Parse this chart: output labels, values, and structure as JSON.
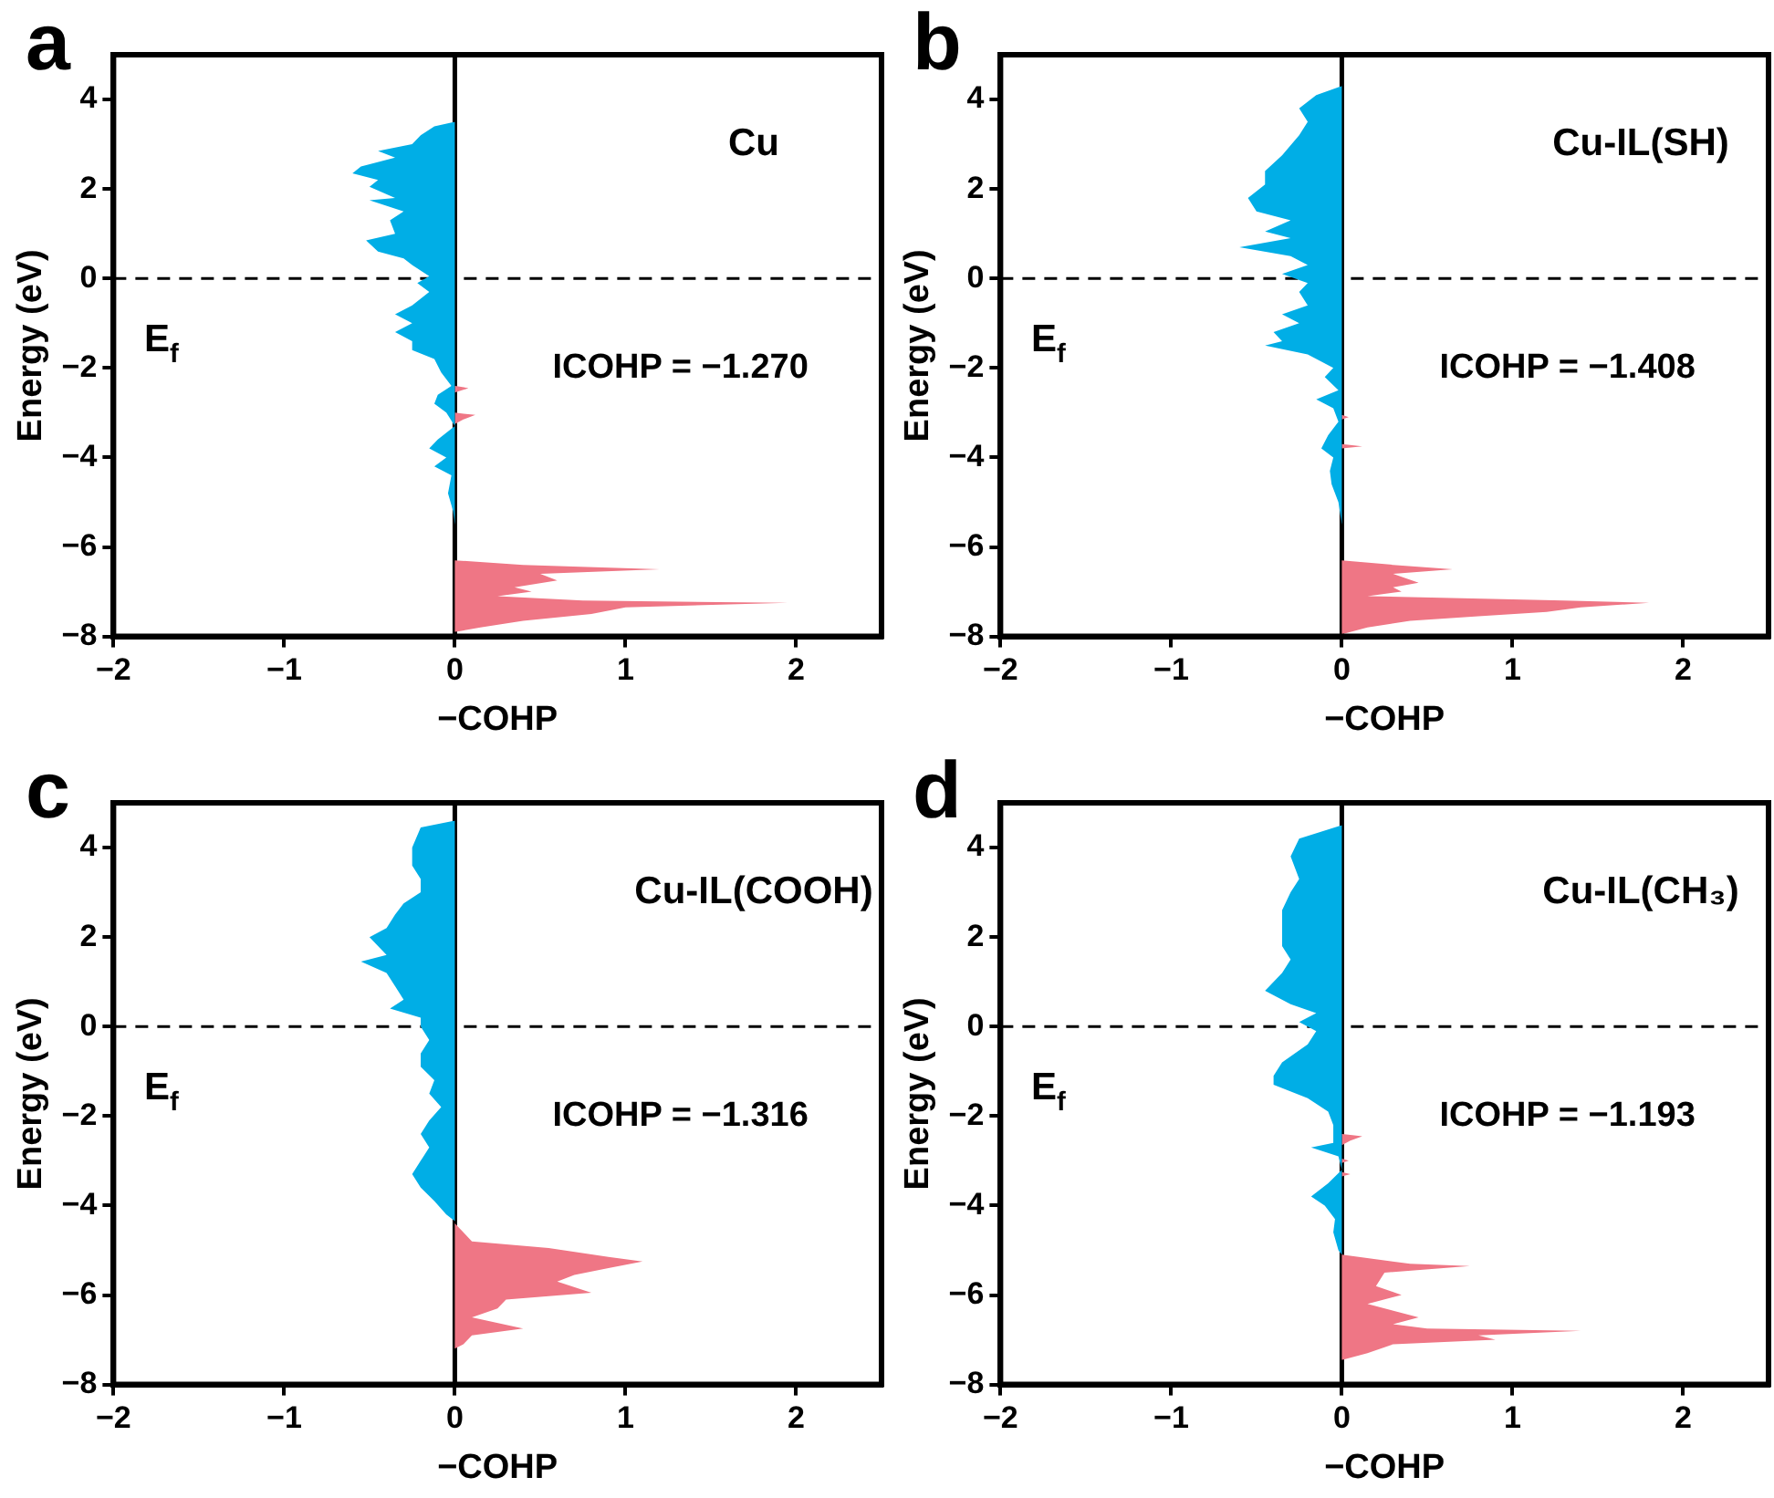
{
  "chart_data": [
    {
      "type": "area",
      "orientation": "horizontal",
      "title": "Cu",
      "xlabel": "−COHP",
      "ylabel": "Energy (eV)",
      "xlim": [
        -2,
        2.5
      ],
      "xticks": [
        -2,
        -1,
        0,
        1,
        2
      ],
      "ylim": [
        -8,
        5
      ],
      "yticks": [
        -8,
        -6,
        -4,
        -2,
        0,
        2,
        4
      ],
      "grid": false,
      "legend": false,
      "marker": "none",
      "annotations": [
        "a",
        "E$_{f}$",
        "ICOHP = −1.270"
      ],
      "ref_lines": [
        {
          "axis": "y",
          "value": 0,
          "color": "#000000",
          "line_style": "dashed"
        },
        {
          "axis": "x",
          "value": 0,
          "color": "#000000",
          "line_style": "solid"
        }
      ],
      "series": [
        {
          "color": "#00aee6",
          "x": [
            3.5,
            3.4,
            3.2,
            3.0,
            2.85,
            2.7,
            2.5,
            2.35,
            2.2,
            2.05,
            1.8,
            1.75,
            1.5,
            1.3,
            1.0,
            0.85,
            0.6,
            0.45,
            0.3,
            0.05,
            -0.1,
            -0.3,
            -0.6,
            -0.8,
            -1.0,
            -1.2,
            -1.4,
            -1.6,
            -1.8,
            -2.1,
            -2.4,
            -2.6,
            -2.8,
            -3.0,
            -3.3,
            -3.6,
            -3.8,
            -4.0,
            -4.2,
            -4.4,
            -4.8,
            -5.2,
            -5.5
          ],
          "values": [
            0,
            -0.12,
            -0.2,
            -0.25,
            -0.45,
            -0.35,
            -0.55,
            -0.6,
            -0.45,
            -0.5,
            -0.35,
            -0.5,
            -0.3,
            -0.38,
            -0.35,
            -0.52,
            -0.45,
            -0.3,
            -0.25,
            -0.15,
            -0.22,
            -0.15,
            -0.25,
            -0.35,
            -0.25,
            -0.35,
            -0.25,
            -0.25,
            -0.12,
            -0.08,
            -0.02,
            -0.1,
            -0.12,
            -0.05,
            0,
            -0.1,
            -0.15,
            -0.05,
            -0.12,
            -0.02,
            -0.04,
            -0.01,
            0
          ]
        },
        {
          "color": "#ef7685",
          "x": [
            -2.4,
            -2.45,
            -2.55,
            -3.0,
            -3.05,
            -3.15,
            -3.25,
            -6.3,
            -6.4,
            -6.5,
            -6.6,
            -6.75,
            -6.9,
            -7.0,
            -7.1,
            -7.2,
            -7.25,
            -7.35,
            -7.5,
            -7.65,
            -7.8,
            -7.9
          ],
          "values": [
            0,
            0.08,
            0,
            0,
            0.12,
            0.05,
            0,
            0,
            0.4,
            1.2,
            0.5,
            0.6,
            0.35,
            0.45,
            0.25,
            0.75,
            1.95,
            1.0,
            0.8,
            0.4,
            0.15,
            0
          ]
        }
      ]
    },
    {
      "type": "area",
      "orientation": "horizontal",
      "title": "Cu-IL(SH)",
      "xlabel": "−COHP",
      "ylabel": "Energy (eV)",
      "xlim": [
        -2,
        2.5
      ],
      "xticks": [
        -2,
        -1,
        0,
        1,
        2
      ],
      "ylim": [
        -8,
        5
      ],
      "yticks": [
        -8,
        -6,
        -4,
        -2,
        0,
        2,
        4
      ],
      "grid": false,
      "legend": false,
      "marker": "none",
      "annotations": [
        "b",
        "E$_{f}$",
        "ICOHP = −1.408"
      ],
      "ref_lines": [
        {
          "axis": "y",
          "value": 0,
          "color": "#000000",
          "line_style": "dashed"
        },
        {
          "axis": "x",
          "value": 0,
          "color": "#000000",
          "line_style": "solid"
        }
      ],
      "series": [
        {
          "color": "#00aee6",
          "x": [
            4.3,
            4.1,
            3.8,
            3.5,
            3.2,
            2.75,
            2.4,
            2.1,
            1.8,
            1.5,
            1.3,
            1.05,
            0.9,
            0.7,
            0.5,
            0.3,
            0.1,
            -0.1,
            -0.3,
            -0.6,
            -0.8,
            -1.0,
            -1.2,
            -1.4,
            -1.5,
            -1.7,
            -2.0,
            -2.2,
            -2.5,
            -2.7,
            -2.9,
            -3.2,
            -3.5,
            -3.8,
            -4.0,
            -4.3,
            -4.6,
            -5.0,
            -5.5
          ],
          "values": [
            0,
            -0.15,
            -0.25,
            -0.2,
            -0.25,
            -0.35,
            -0.45,
            -0.45,
            -0.55,
            -0.5,
            -0.3,
            -0.45,
            -0.3,
            -0.6,
            -0.3,
            -0.2,
            -0.35,
            -0.2,
            -0.25,
            -0.2,
            -0.35,
            -0.25,
            -0.4,
            -0.35,
            -0.45,
            -0.2,
            -0.05,
            -0.1,
            -0.02,
            -0.15,
            -0.05,
            -0.02,
            -0.08,
            -0.12,
            -0.05,
            -0.07,
            -0.06,
            -0.02,
            0
          ]
        },
        {
          "color": "#ef7685",
          "x": [
            -3.05,
            -3.1,
            -3.15,
            -3.7,
            -3.75,
            -3.8,
            -6.3,
            -6.4,
            -6.5,
            -6.6,
            -6.8,
            -6.9,
            -7.0,
            -7.1,
            -7.2,
            -7.25,
            -7.35,
            -7.45,
            -7.55,
            -7.65,
            -7.8,
            -7.95
          ],
          "values": [
            0,
            0.04,
            0,
            0,
            0.12,
            0,
            0,
            0.3,
            0.65,
            0.3,
            0.45,
            0.3,
            0.35,
            0.15,
            1.3,
            1.8,
            1.4,
            1.2,
            0.8,
            0.4,
            0.15,
            0
          ]
        }
      ]
    },
    {
      "type": "area",
      "orientation": "horizontal",
      "title": "Cu-IL(COOH)",
      "xlabel": "−COHP",
      "ylabel": "Energy (eV)",
      "xlim": [
        -2,
        2.5
      ],
      "xticks": [
        -2,
        -1,
        0,
        1,
        2
      ],
      "ylim": [
        -8,
        5
      ],
      "yticks": [
        -8,
        -6,
        -4,
        -2,
        0,
        2,
        4
      ],
      "grid": false,
      "legend": false,
      "marker": "none",
      "annotations": [
        "c",
        "E$_{f}$",
        "ICOHP = −1.316"
      ],
      "ref_lines": [
        {
          "axis": "y",
          "value": 0,
          "color": "#000000",
          "line_style": "dashed"
        },
        {
          "axis": "x",
          "value": 0,
          "color": "#000000",
          "line_style": "solid"
        }
      ],
      "series": [
        {
          "color": "#00aee6",
          "x": [
            4.6,
            4.45,
            4.0,
            3.6,
            3.3,
            3.0,
            2.75,
            2.5,
            2.2,
            2.0,
            1.8,
            1.6,
            1.45,
            1.2,
            0.9,
            0.6,
            0.4,
            0.2,
            0.0,
            -0.3,
            -0.6,
            -0.9,
            -1.2,
            -1.5,
            -1.8,
            -2.1,
            -2.4,
            -2.7,
            -3.0,
            -3.3,
            -3.6,
            -3.9,
            -4.2,
            -4.35
          ],
          "values": [
            0,
            -0.2,
            -0.25,
            -0.25,
            -0.2,
            -0.2,
            -0.3,
            -0.35,
            -0.4,
            -0.5,
            -0.45,
            -0.4,
            -0.55,
            -0.4,
            -0.35,
            -0.3,
            -0.38,
            -0.2,
            -0.2,
            -0.15,
            -0.2,
            -0.2,
            -0.12,
            -0.15,
            -0.08,
            -0.15,
            -0.2,
            -0.15,
            -0.2,
            -0.25,
            -0.2,
            -0.12,
            -0.05,
            0
          ]
        },
        {
          "color": "#ef7685",
          "x": [
            -4.4,
            -4.6,
            -4.8,
            -4.95,
            -5.15,
            -5.25,
            -5.4,
            -5.55,
            -5.7,
            -5.95,
            -6.1,
            -6.3,
            -6.5,
            -6.75,
            -6.9,
            -7.1,
            -7.2
          ],
          "values": [
            0,
            0.05,
            0.1,
            0.55,
            0.9,
            1.1,
            0.9,
            0.7,
            0.6,
            0.8,
            0.3,
            0.25,
            0.1,
            0.4,
            0.1,
            0.05,
            0
          ]
        }
      ]
    },
    {
      "type": "area",
      "orientation": "horizontal",
      "title": "Cu-IL(CH₃)",
      "xlabel": "−COHP",
      "ylabel": "Energy (eV)",
      "xlim": [
        -2,
        2.5
      ],
      "xticks": [
        -2,
        -1,
        0,
        1,
        2
      ],
      "ylim": [
        -8,
        5
      ],
      "yticks": [
        -8,
        -6,
        -4,
        -2,
        0,
        2,
        4
      ],
      "grid": false,
      "legend": false,
      "marker": "none",
      "annotations": [
        "d",
        "E$_{f}$",
        "ICOHP = −1.193"
      ],
      "ref_lines": [
        {
          "axis": "y",
          "value": 0,
          "color": "#000000",
          "line_style": "dashed"
        },
        {
          "axis": "x",
          "value": 0,
          "color": "#000000",
          "line_style": "solid"
        }
      ],
      "series": [
        {
          "color": "#00aee6",
          "x": [
            4.5,
            4.2,
            3.8,
            3.3,
            3.0,
            2.6,
            2.2,
            1.8,
            1.5,
            1.2,
            0.8,
            0.5,
            0.3,
            0.1,
            -0.1,
            -0.4,
            -0.8,
            -1.1,
            -1.3,
            -1.6,
            -1.9,
            -2.2,
            -2.6,
            -2.7,
            -2.9,
            -3.2,
            -3.5,
            -3.8,
            -4.0,
            -4.3,
            -4.6,
            -5.0,
            -5.1
          ],
          "values": [
            0,
            -0.25,
            -0.3,
            -0.25,
            -0.3,
            -0.35,
            -0.35,
            -0.35,
            -0.3,
            -0.35,
            -0.45,
            -0.3,
            -0.15,
            -0.25,
            -0.15,
            -0.2,
            -0.35,
            -0.4,
            -0.4,
            -0.2,
            -0.08,
            -0.05,
            -0.05,
            -0.18,
            -0.02,
            0,
            -0.08,
            -0.18,
            -0.1,
            -0.04,
            -0.05,
            -0.02,
            0
          ]
        },
        {
          "color": "#ef7685",
          "x": [
            -2.4,
            -2.45,
            -2.55,
            -2.65,
            -2.95,
            -3.0,
            -3.05,
            -3.25,
            -3.3,
            -3.35,
            -5.1,
            -5.3,
            -5.35,
            -5.5,
            -5.8,
            -6.0,
            -6.2,
            -6.5,
            -6.65,
            -6.75,
            -6.8,
            -6.9,
            -7.0,
            -7.1,
            -7.3,
            -7.45
          ],
          "values": [
            0,
            0.12,
            0.05,
            0,
            0,
            0.04,
            0,
            0,
            0.05,
            0,
            0,
            0.4,
            0.75,
            0.25,
            0.2,
            0.35,
            0.15,
            0.45,
            0.3,
            0.5,
            1.4,
            0.8,
            0.9,
            0.3,
            0.15,
            0
          ]
        }
      ]
    }
  ]
}
